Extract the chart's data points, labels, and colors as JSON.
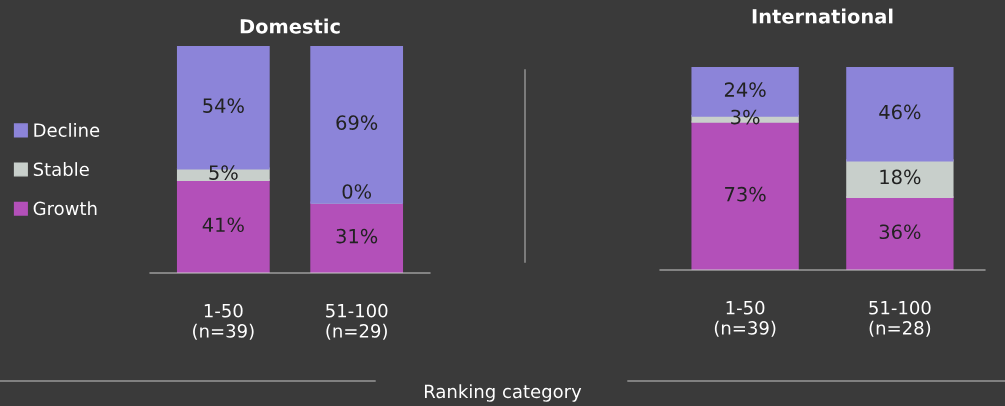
{
  "chart_data": [
    {
      "type": "bar",
      "title": "Domestic",
      "stacked": true,
      "relative": false,
      "legend": "left",
      "categories": [
        "1-50\n(n=39)",
        "51-100\n(n=29)"
      ],
      "ylim": [
        0,
        100
      ],
      "tick_labels": "x",
      "annotations": [
        "Ranking category"
      ],
      "series": [
        {
          "name": "Growth",
          "color": "#b350b9",
          "values": [
            41,
            31
          ],
          "value_labels": [
            "41%",
            "31%"
          ]
        },
        {
          "name": "Stable",
          "color": "#c8cfcb",
          "values": [
            5,
            0
          ],
          "value_labels": [
            "5%",
            "0%"
          ]
        },
        {
          "name": "Decline",
          "color": "#8c84d9",
          "values": [
            54,
            69
          ],
          "value_labels": [
            "54%",
            "69%"
          ]
        }
      ]
    },
    {
      "type": "bar",
      "title": "International",
      "stacked": true,
      "legend": false,
      "categories": [
        "1-50\n(n=39)",
        "51-100\n(n=28)"
      ],
      "ylim": [
        0,
        100
      ],
      "tick_labels": "x",
      "series": [
        {
          "color": "#b350b9",
          "values": [
            73,
            36
          ],
          "value_labels": [
            "73%",
            "36%"
          ]
        },
        {
          "color": "#c8cfcb",
          "values": [
            3,
            18
          ],
          "value_labels": [
            "3%",
            "18%"
          ]
        },
        {
          "color": "#8c84d9",
          "values": [
            24,
            46
          ],
          "value_labels": [
            "24%",
            "46%"
          ]
        }
      ]
    }
  ]
}
